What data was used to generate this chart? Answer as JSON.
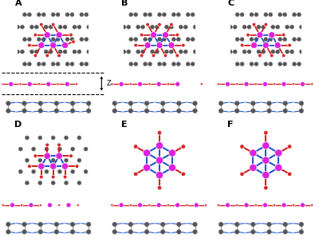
{
  "fig_width": 4.0,
  "fig_height": 3.03,
  "dpi": 100,
  "background": "#ffffff",
  "Pb_color": "#dd22dd",
  "N_red_color": "#dd2222",
  "C_dark_color": "#555555",
  "N_blue_color": "#2255cc",
  "bond_red": "#cc2222",
  "bond_blue": "#2255cc",
  "bond_gray": "#999999",
  "bond_pink": "#cc44cc",
  "label_fontsize": 8,
  "panel_labels": [
    "A",
    "B",
    "C",
    "D",
    "E",
    "F"
  ]
}
